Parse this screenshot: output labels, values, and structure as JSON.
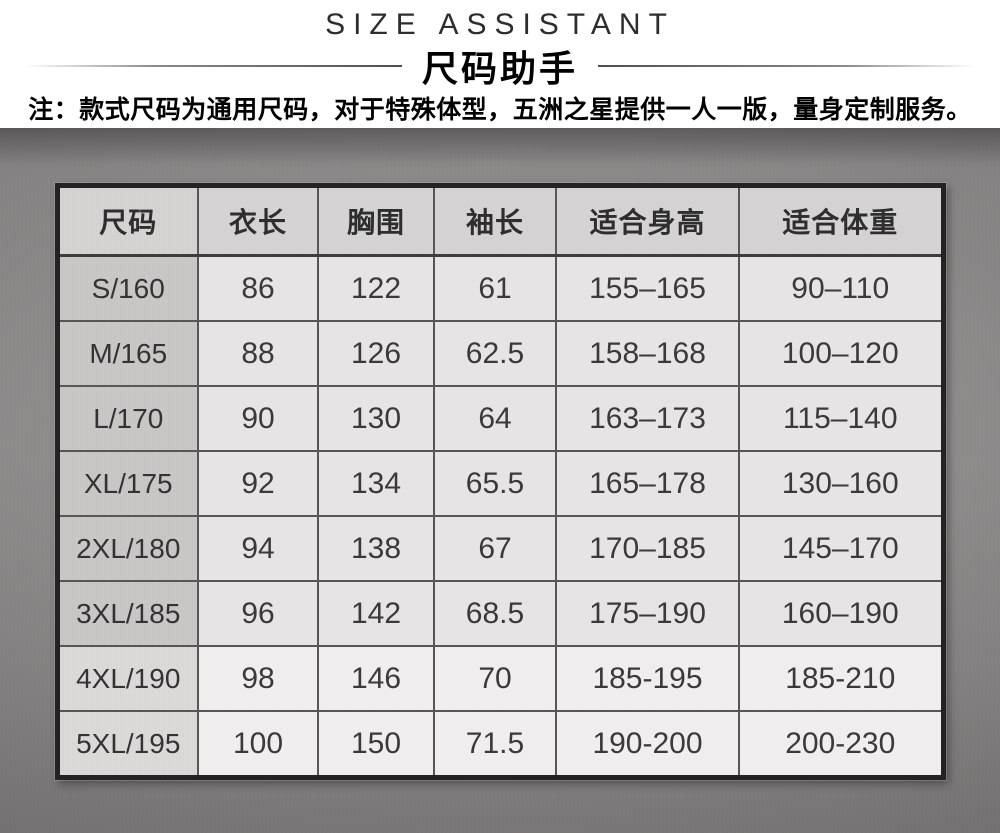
{
  "header": {
    "title_en": "SIZE ASSISTANT",
    "title_zh": "尺码助手",
    "note": "注：款式尺码为通用尺码，对于特殊体型，五洲之星提供一人一版，量身定制服务。"
  },
  "table": {
    "columns": [
      "尺码",
      "衣长",
      "胸围",
      "袖长",
      "适合身高",
      "适合体重"
    ],
    "rows": [
      [
        "S/160",
        "86",
        "122",
        "61",
        "155–165",
        "90–110"
      ],
      [
        "M/165",
        "88",
        "126",
        "62.5",
        "158–168",
        "100–120"
      ],
      [
        "L/170",
        "90",
        "130",
        "64",
        "163–173",
        "115–140"
      ],
      [
        "XL/175",
        "92",
        "134",
        "65.5",
        "165–178",
        "130–160"
      ],
      [
        "2XL/180",
        "94",
        "138",
        "67",
        "170–185",
        "145–170"
      ],
      [
        "3XL/185",
        "96",
        "142",
        "68.5",
        "175–190",
        "160–190"
      ],
      [
        "4XL/190",
        "98",
        "146",
        "70",
        "185-195",
        "185-210"
      ],
      [
        "5XL/195",
        "100",
        "150",
        "71.5",
        "190-200",
        "200-230"
      ]
    ],
    "alt_rows_start_index": 6
  },
  "colors": {
    "table_border": "#232323",
    "grid_line": "#565656",
    "metal_base": "#8f8c8c",
    "header_cell": "#d7d6d5",
    "data_cell": "#e9e8e7",
    "size_column_cell": "#cac9c8",
    "text": "#3a3a3a"
  }
}
